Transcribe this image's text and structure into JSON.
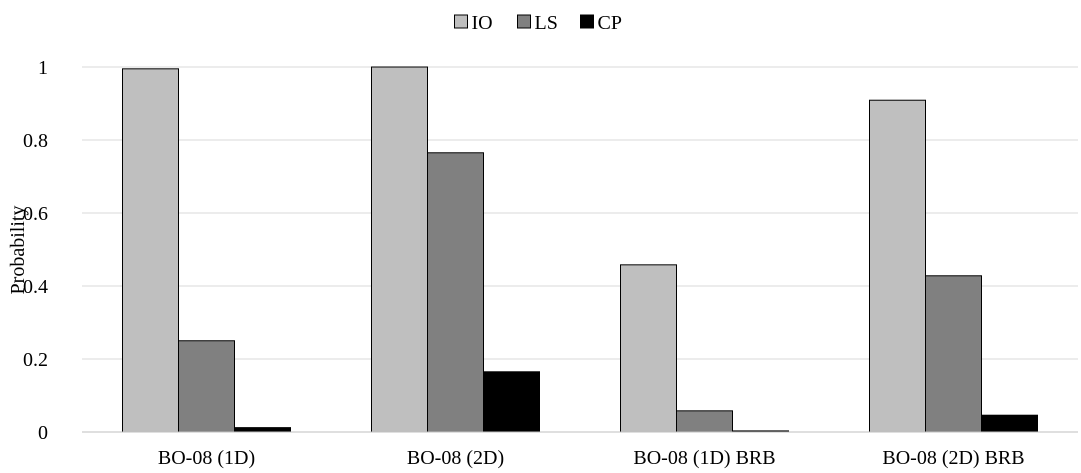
{
  "chart_data": {
    "type": "bar",
    "title": "",
    "xlabel": "",
    "ylabel": "Probability",
    "ylim": [
      0,
      1
    ],
    "yticks": [
      0,
      0.2,
      0.4,
      0.6,
      0.8,
      1
    ],
    "ytick_labels": [
      "0",
      "0.2",
      "0.4",
      "0.6",
      "0.8",
      "1"
    ],
    "grid": true,
    "legend_position": "top-center",
    "categories": [
      "BO-08 (1D)",
      "BO-08 (2D)",
      "BO-08 (1D) BRB",
      "BO-08 (2D) BRB"
    ],
    "series": [
      {
        "name": "IO",
        "color": "#bfbfbf",
        "values": [
          0.995,
          1.0,
          0.458,
          0.909
        ]
      },
      {
        "name": "LS",
        "color": "#808080",
        "values": [
          0.25,
          0.765,
          0.058,
          0.428
        ]
      },
      {
        "name": "CP",
        "color": "#000000",
        "values": [
          0.012,
          0.165,
          0.003,
          0.046
        ]
      }
    ]
  }
}
